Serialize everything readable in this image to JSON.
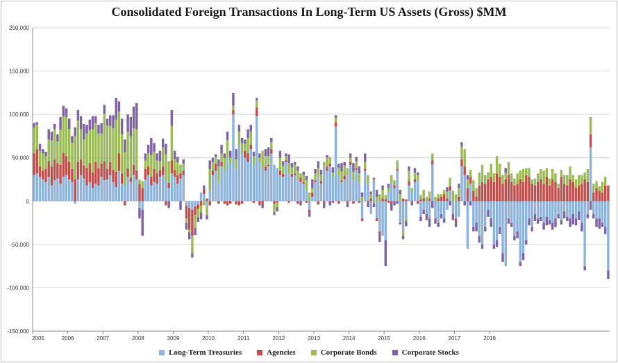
{
  "chart_data": {
    "type": "bar",
    "stacked": true,
    "title": "Consolidated Foreign Transactions In Long-Term US Assets (Gross) $MM",
    "xlabel": "",
    "ylabel": "",
    "ylim": [
      -150000,
      200000
    ],
    "yticks": [
      -150000,
      -100000,
      -50000,
      0,
      50000,
      100000,
      150000,
      200000
    ],
    "ytick_labels": [
      "-150,000",
      "-100,000",
      "-50,000",
      "0",
      "50,000",
      "100,000",
      "150,000",
      "200,000"
    ],
    "x_start_year": 2005,
    "months_per_year": 12,
    "xtick_labels": [
      "2005",
      "2006",
      "2007",
      "2008",
      "2009",
      "2010",
      "2011",
      "2012",
      "2013",
      "2014",
      "2015",
      "2016",
      "2017",
      "2018"
    ],
    "grid": true,
    "legend_position": "bottom",
    "series": [
      {
        "name": "Long-Term Treasuries",
        "color": "#8fb4dc",
        "values": [
          30000,
          32000,
          28000,
          25000,
          22000,
          28000,
          18000,
          24000,
          26000,
          20000,
          28000,
          30000,
          25000,
          22000,
          -3000,
          25000,
          30000,
          26000,
          18000,
          22000,
          15000,
          20000,
          18000,
          28000,
          24000,
          25000,
          30000,
          22000,
          16000,
          35000,
          20000,
          18000,
          28000,
          22000,
          30000,
          25000,
          -8000,
          -10000,
          25000,
          30000,
          18000,
          22000,
          20000,
          28000,
          30000,
          24000,
          15000,
          32000,
          28000,
          20000,
          26000,
          30000,
          -5000,
          -8000,
          -10000,
          -6000,
          -4000,
          10000,
          8000,
          -6000,
          12000,
          30000,
          35000,
          22000,
          40000,
          35000,
          50000,
          42000,
          100000,
          38000,
          65000,
          55000,
          50000,
          45000,
          60000,
          42000,
          98000,
          45000,
          38000,
          35000,
          40000,
          55000,
          42000,
          38000,
          30000,
          28000,
          45000,
          32000,
          28000,
          30000,
          25000,
          22000,
          20000,
          12000,
          -10000,
          5000,
          22000,
          28000,
          20000,
          40000,
          35000,
          40000,
          28000,
          86000,
          30000,
          22000,
          25000,
          30000,
          42000,
          24000,
          36000,
          22000,
          -20000,
          35000,
          20000,
          -15000,
          25000,
          -20000,
          -35000,
          -40000,
          -45000,
          10000,
          22000,
          15000,
          35000,
          -25000,
          -35000,
          -20000,
          18000,
          10000,
          22000,
          25000,
          -18000,
          -10000,
          -15000,
          -20000,
          42000,
          -20000,
          -25000,
          -15000,
          -20000,
          -10000,
          12000,
          -15000,
          -20000,
          -18000,
          40000,
          30000,
          -55000,
          20000,
          -30000,
          -25000,
          -40000,
          -50000,
          -30000,
          -10000,
          -20000,
          -50000,
          -45000,
          -30000,
          -60000,
          -75000,
          -20000,
          -25000,
          -40000,
          -35000,
          -70000,
          -60000,
          -45000,
          -20000,
          -30000,
          -15000,
          -20000,
          -18000,
          -25000,
          -18000,
          -22000,
          -25000,
          -20000,
          -15000,
          -22000,
          -12000,
          -18000,
          -20000,
          -15000,
          -20000,
          -12000,
          -25000,
          -75000,
          -15000,
          62000,
          -15000,
          -20000,
          -20000,
          -25000,
          -30000,
          -80000
        ]
      },
      {
        "name": "Agencies",
        "color": "#c0504d",
        "values": [
          25000,
          28000,
          12000,
          10000,
          15000,
          18000,
          22000,
          24000,
          18000,
          22000,
          28000,
          22000,
          20000,
          15000,
          25000,
          20000,
          18000,
          15000,
          20000,
          22000,
          18000,
          25000,
          20000,
          15000,
          22000,
          12000,
          15000,
          14000,
          18000,
          20000,
          12000,
          -5000,
          10000,
          5000,
          12000,
          10000,
          20000,
          15000,
          12000,
          10000,
          10000,
          15000,
          12000,
          8000,
          10000,
          -5000,
          6000,
          15000,
          8000,
          10000,
          6000,
          5000,
          -15000,
          -25000,
          -30000,
          -10000,
          -5000,
          -5000,
          5000,
          3000,
          -5000,
          5000,
          8000,
          -3000,
          5000,
          -3000,
          -5000,
          -3000,
          5000,
          -4000,
          -5000,
          -3000,
          8000,
          10000,
          5000,
          -2000,
          10000,
          -5000,
          -3000,
          5000,
          2000,
          5000,
          -3000,
          -2000,
          5000,
          3000,
          2000,
          -2000,
          3000,
          2000,
          -3000,
          5000,
          2000,
          -2000,
          -3000,
          5000,
          2000,
          -4000,
          3000,
          -2000,
          5000,
          3000,
          -2000,
          5000,
          -3000,
          2000,
          4000,
          -2000,
          3000,
          -3000,
          2000,
          -2000,
          -3000,
          2000,
          -2000,
          3000,
          2000,
          -3000,
          -2000,
          3000,
          2000,
          -2000,
          -3000,
          3000,
          2000,
          -2000,
          3000,
          2000,
          5000,
          -2000,
          3000,
          -3000,
          2000,
          3000,
          -2000,
          3000,
          5000,
          -2000,
          3000,
          5000,
          8000,
          3000,
          5000,
          -2000,
          -5000,
          5000,
          8000,
          10000,
          15000,
          8000,
          12000,
          5000,
          18000,
          22000,
          20000,
          25000,
          28000,
          22000,
          32000,
          28000,
          20000,
          25000,
          30000,
          22000,
          18000,
          20000,
          25000,
          22000,
          30000,
          28000,
          20000,
          18000,
          22000,
          25000,
          20000,
          28000,
          18000,
          25000,
          22000,
          15000,
          28000,
          20000,
          18000,
          25000,
          22000,
          15000,
          18000,
          20000,
          25000,
          22000,
          15000,
          10000,
          15000,
          12000,
          10000,
          18000,
          18000,
          15000
        ]
      },
      {
        "name": "Corporate Bonds",
        "color": "#9bbb59",
        "values": [
          30000,
          28000,
          18000,
          20000,
          15000,
          25000,
          30000,
          35000,
          25000,
          40000,
          42000,
          45000,
          38000,
          30000,
          50000,
          48000,
          35000,
          30000,
          40000,
          38000,
          50000,
          45000,
          40000,
          35000,
          55000,
          50000,
          42000,
          48000,
          60000,
          48000,
          45000,
          38000,
          42000,
          48000,
          42000,
          48000,
          5000,
          8000,
          10000,
          15000,
          25000,
          20000,
          15000,
          10000,
          22000,
          30000,
          25000,
          40000,
          12000,
          15000,
          10000,
          8000,
          -5000,
          -3000,
          -20000,
          -15000,
          -10000,
          -8000,
          -5000,
          -10000,
          25000,
          10000,
          8000,
          18000,
          10000,
          15000,
          20000,
          8000,
          5000,
          10000,
          15000,
          12000,
          8000,
          18000,
          15000,
          10000,
          8000,
          5000,
          20000,
          12000,
          10000,
          8000,
          -10000,
          -5000,
          15000,
          10000,
          5000,
          12000,
          8000,
          10000,
          10000,
          5000,
          8000,
          12000,
          10000,
          5000,
          8000,
          10000,
          8000,
          5000,
          10000,
          8000,
          5000,
          5000,
          8000,
          10000,
          12000,
          8000,
          5000,
          10000,
          8000,
          10000,
          5000,
          8000,
          10000,
          5000,
          -3000,
          5000,
          8000,
          10000,
          5000,
          5000,
          8000,
          6000,
          10000,
          8000,
          -5000,
          -3000,
          12000,
          5000,
          8000,
          5000,
          5000,
          10000,
          5000,
          8000,
          8000,
          5000,
          5000,
          3000,
          5000,
          8000,
          10000,
          12000,
          8000,
          10000,
          15000,
          20000,
          10000,
          8000,
          12000,
          10000,
          15000,
          20000,
          10000,
          8000,
          15000,
          10000,
          20000,
          15000,
          10000,
          8000,
          15000,
          10000,
          8000,
          12000,
          10000,
          15000,
          8000,
          10000,
          5000,
          8000,
          10000,
          12000,
          15000,
          10000,
          8000,
          12000,
          10000,
          5000,
          8000,
          10000,
          12000,
          15000,
          8000,
          10000,
          12000,
          10000,
          8000,
          15000,
          20000,
          10000,
          8000,
          5000,
          12000,
          10000
        ]
      },
      {
        "name": "Corporate Stocks",
        "color": "#8064a2",
        "values": [
          5000,
          3000,
          8000,
          5000,
          5000,
          12000,
          10000,
          6000,
          8000,
          15000,
          12000,
          10000,
          12000,
          8000,
          10000,
          12000,
          15000,
          18000,
          10000,
          12000,
          15000,
          8000,
          10000,
          12000,
          10000,
          8000,
          12000,
          15000,
          25000,
          12000,
          18000,
          15000,
          20000,
          22000,
          25000,
          30000,
          -12000,
          -30000,
          8000,
          10000,
          20000,
          10000,
          8000,
          12000,
          10000,
          12000,
          -8000,
          18000,
          10000,
          6000,
          -10000,
          5000,
          -8000,
          -8000,
          -5000,
          -8000,
          -5000,
          -8000,
          5000,
          -5000,
          10000,
          5000,
          3000,
          8000,
          10000,
          5000,
          10000,
          8000,
          15000,
          12000,
          8000,
          6000,
          5000,
          10000,
          8000,
          5000,
          3000,
          5000,
          -5000,
          8000,
          10000,
          5000,
          -3000,
          -5000,
          8000,
          5000,
          3000,
          10000,
          5000,
          3000,
          5000,
          -5000,
          4000,
          5000,
          -5000,
          10000,
          5000,
          8000,
          5000,
          -6000,
          3000,
          -5000,
          6000,
          3000,
          5000,
          10000,
          4000,
          -5000,
          5000,
          10000,
          5000,
          8000,
          5000,
          10000,
          -5000,
          3000,
          -4000,
          8000,
          -10000,
          5000,
          -30000,
          5000,
          -8000,
          -5000,
          -3000,
          5000,
          -4000,
          -6000,
          5000,
          -3000,
          5000,
          3000,
          -5000,
          -5000,
          -5000,
          -10000,
          -8000,
          -4000,
          -5000,
          -5000,
          -5000,
          5000,
          -5000,
          -5000,
          -5000,
          5000,
          5000,
          -5000,
          5000,
          -5000,
          -5000,
          -10000,
          -8000,
          -5000,
          -5000,
          -8000,
          -10000,
          -5000,
          -8000,
          -8000,
          -10000,
          5000,
          -6000,
          -5000,
          -5000,
          -8000,
          -5000,
          -8000,
          -5000,
          -8000,
          -5000,
          -8000,
          -6000,
          -5000,
          -8000,
          -10000,
          -5000,
          -8000,
          -10000,
          -5000,
          -5000,
          -8000,
          -5000,
          -10000,
          -12000,
          -8000,
          -10000,
          -10000,
          -5000,
          -5000,
          -10000,
          -5000,
          -10000,
          -12000,
          -5000,
          -8000,
          -10000,
          -5000,
          -15000
        ]
      }
    ]
  }
}
